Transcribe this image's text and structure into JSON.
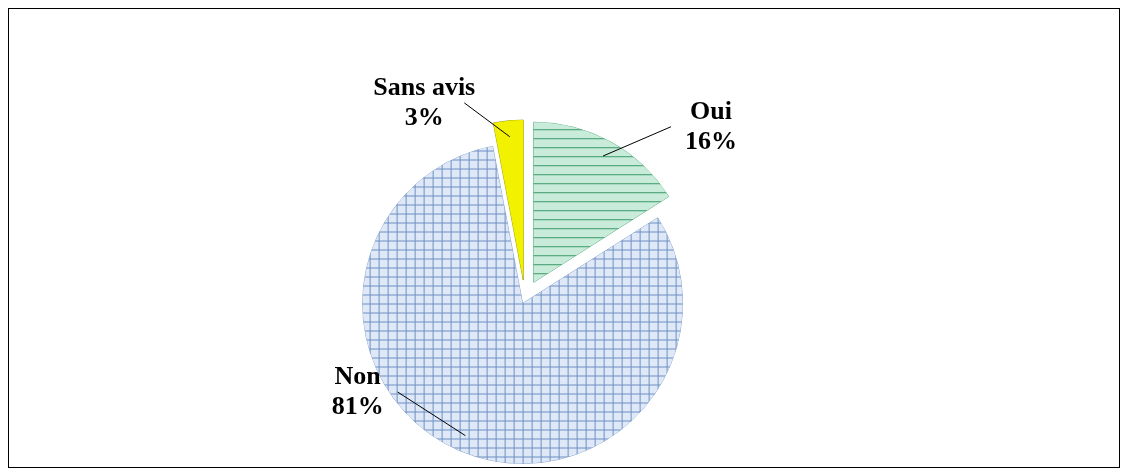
{
  "chart_data": {
    "type": "pie",
    "categories": [
      "Oui",
      "Non",
      "Sans avis"
    ],
    "values": [
      16,
      81,
      3
    ],
    "colors": [
      "#c8ecd9",
      "#dfe8f6",
      "#f2f200"
    ],
    "value_labels": [
      "16%",
      "81%",
      "3%"
    ]
  }
}
